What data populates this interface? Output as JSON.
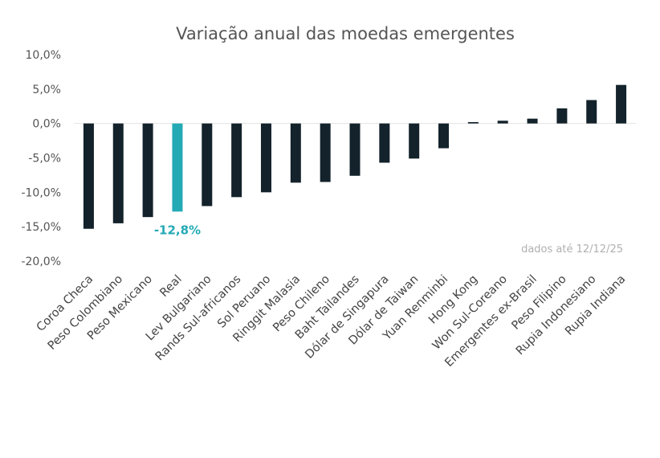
{
  "chart_data": {
    "type": "bar",
    "title": "Variação anual das moedas emergentes",
    "xlabel": "",
    "ylabel": "",
    "ylim": [
      -20,
      10
    ],
    "yticks": [
      "10,0%",
      "5,0%",
      "0,0%",
      "-5,0%",
      "-10,0%",
      "-15,0%",
      "-20,0%"
    ],
    "ytick_values": [
      10,
      5,
      0,
      -5,
      -10,
      -15,
      -20
    ],
    "categories": [
      "Coroa Checa",
      "Peso Colombiano",
      "Peso Mexicano",
      "Real",
      "Lev Bulgariano",
      "Rands Sul-africanos",
      "Sol Peruano",
      "Ringgit Malasia",
      "Peso Chileno",
      "Baht Tailandes",
      "Dólar de Singapura",
      "Dólar de Taiwan",
      "Yuan Renminbi",
      "Hong Kong",
      "Won Sul-Coreano",
      "Emergentes ex-Brasil",
      "Peso Filipino",
      "Rupia Indonesiano",
      "Rupia Indiana"
    ],
    "values": [
      -15.3,
      -14.5,
      -13.6,
      -12.8,
      -12.0,
      -10.7,
      -10.0,
      -8.6,
      -8.5,
      -7.6,
      -5.7,
      -5.1,
      -3.6,
      0.2,
      0.4,
      0.7,
      2.2,
      3.4,
      5.6
    ],
    "highlight_index": 3,
    "data_labels": [
      {
        "index": 3,
        "text": "-12,8%"
      }
    ],
    "annotation": "dados até 12/12/25",
    "grid": false,
    "colors": {
      "bar": "#13222b",
      "highlight": "#24aab5",
      "text": "#555555",
      "note": "#b0b0b0"
    }
  }
}
